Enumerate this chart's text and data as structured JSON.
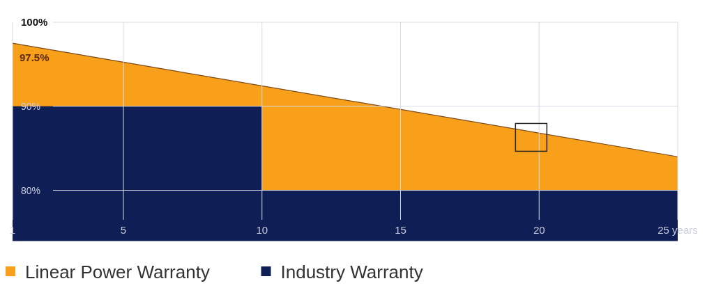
{
  "chart_data": {
    "type": "area",
    "xlim": [
      1,
      25
    ],
    "ylim": [
      74,
      100
    ],
    "xticks": [
      1,
      5,
      10,
      15,
      20,
      {
        "value": 25,
        "label": "25 years"
      }
    ],
    "yticks": [
      {
        "value": 80,
        "label": "80%"
      },
      {
        "value": 90,
        "label": "90%"
      },
      {
        "value": 100,
        "label": "100%"
      }
    ],
    "grid": true,
    "legend": "bottom left",
    "annotations": [
      {
        "text": "97.5%",
        "x": 1,
        "y": 97.5
      }
    ],
    "series": [
      {
        "name": "Linear Power Warranty",
        "color": "#f9a01b",
        "x": [
          1,
          25
        ],
        "values": [
          97.5,
          84
        ]
      },
      {
        "name": "Industry Warranty",
        "color": "#0f1e55",
        "x": [
          1,
          10,
          10,
          25
        ],
        "values": [
          90,
          90,
          80,
          80
        ]
      }
    ]
  }
}
